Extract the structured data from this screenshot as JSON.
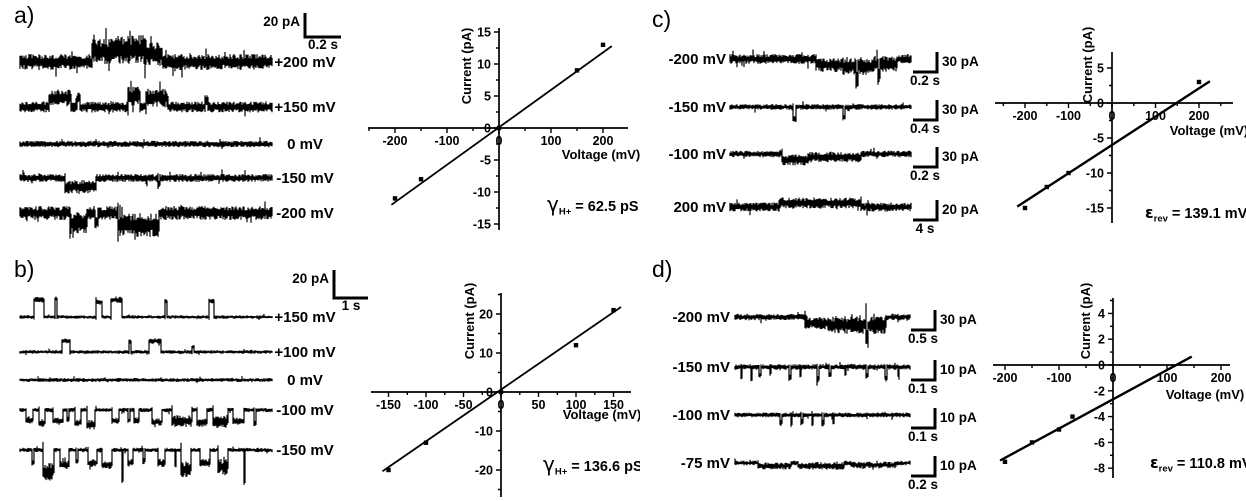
{
  "figure": {
    "background": "#ffffff",
    "ink": "#000000"
  },
  "panels": [
    {
      "label": "a)",
      "scalebars": [
        {
          "current": "20 pA",
          "time": "0.2 s"
        }
      ],
      "traces": [
        {
          "label": "+200 mV",
          "noise": 8,
          "events": [
            {
              "t": "burst",
              "s": 0.285,
              "e": 0.36,
              "a": -10,
              "n": 5
            },
            {
              "t": "burst",
              "s": 0.36,
              "e": 0.5,
              "a": -12,
              "n": 7
            },
            {
              "t": "burst",
              "s": 0.5,
              "e": 0.56,
              "a": -8,
              "n": 4
            }
          ]
        },
        {
          "label": "+150 mV",
          "noise": 5.5,
          "events": [
            {
              "t": "burst",
              "s": 0.115,
              "e": 0.2,
              "a": -9,
              "n": 3
            },
            {
              "t": "spike",
              "s": 0.23,
              "a": -8,
              "w": 0.01
            },
            {
              "t": "burst",
              "s": 0.425,
              "e": 0.475,
              "a": -11,
              "n": 4
            },
            {
              "t": "burst",
              "s": 0.5,
              "e": 0.585,
              "a": -9,
              "n": 4
            },
            {
              "t": "spike",
              "s": 0.74,
              "a": -7,
              "w": 0.012
            }
          ]
        },
        {
          "label": "0 mV",
          "noise": 3.2,
          "events": []
        },
        {
          "label": "-150 mV",
          "noise": 4,
          "events": [
            {
              "t": "burst",
              "s": 0.175,
              "e": 0.3,
              "a": 9,
              "n": 3
            },
            {
              "t": "spike",
              "s": 0.55,
              "a": 6,
              "w": 0.01
            }
          ]
        },
        {
          "label": "-200 mV",
          "noise": 7,
          "events": [
            {
              "t": "burst",
              "s": 0.195,
              "e": 0.265,
              "a": 10,
              "n": 4
            },
            {
              "t": "spike",
              "s": 0.3,
              "a": 8,
              "w": 0.012
            },
            {
              "t": "burst",
              "s": 0.385,
              "e": 0.55,
              "a": 12,
              "n": 5
            }
          ]
        }
      ],
      "annotation": {
        "sym": "γ",
        "sub": "H+",
        "text": "= 62.5 pS"
      }
    },
    {
      "label": "b)",
      "scalebars": [
        {
          "current": "20 pA",
          "time": "1 s"
        }
      ],
      "traces": [
        {
          "label": "+150 mV",
          "noise": 1.8,
          "events": [
            {
              "t": "step",
              "s": 0.055,
              "e": 0.095,
              "a": -17,
              "n": 1.2
            },
            {
              "t": "spike",
              "s": 0.14,
              "a": -18,
              "w": 0.006
            },
            {
              "t": "step",
              "s": 0.3,
              "e": 0.322,
              "a": -15,
              "n": 1
            },
            {
              "t": "step",
              "s": 0.358,
              "e": 0.402,
              "a": -17,
              "n": 1.2
            },
            {
              "t": "spike",
              "s": 0.578,
              "a": -16,
              "w": 0.006
            },
            {
              "t": "step",
              "s": 0.748,
              "e": 0.768,
              "a": -16,
              "n": 1
            }
          ]
        },
        {
          "label": "+100 mV",
          "noise": 1.8,
          "events": [
            {
              "t": "step",
              "s": 0.165,
              "e": 0.198,
              "a": -11,
              "n": 1
            },
            {
              "t": "spike",
              "s": 0.435,
              "a": -10,
              "w": 0.006
            },
            {
              "t": "step",
              "s": 0.508,
              "e": 0.558,
              "a": -11,
              "n": 1
            },
            {
              "t": "spike",
              "s": 0.685,
              "a": -5,
              "w": 0.006
            }
          ]
        },
        {
          "label": "0 mV",
          "noise": 2,
          "events": []
        },
        {
          "label": "-100 mV",
          "noise": 2.2,
          "events": [
            {
              "t": "step",
              "s": 0.02,
              "e": 0.05,
              "a": 10,
              "n": 1.5
            },
            {
              "t": "step",
              "s": 0.072,
              "e": 0.098,
              "a": 13,
              "n": 1.5
            },
            {
              "t": "step",
              "s": 0.128,
              "e": 0.168,
              "a": 11,
              "n": 1.5
            },
            {
              "t": "spike",
              "s": 0.19,
              "a": 9,
              "w": 0.007
            },
            {
              "t": "step",
              "s": 0.215,
              "e": 0.242,
              "a": 13,
              "n": 1.5
            },
            {
              "t": "burst",
              "s": 0.262,
              "e": 0.295,
              "a": 15,
              "n": 3
            },
            {
              "t": "step",
              "s": 0.362,
              "e": 0.392,
              "a": 11,
              "n": 1.5
            },
            {
              "t": "spike",
              "s": 0.432,
              "a": 10,
              "w": 0.007
            },
            {
              "t": "step",
              "s": 0.452,
              "e": 0.472,
              "a": 11,
              "n": 1.5
            },
            {
              "t": "step",
              "s": 0.522,
              "e": 0.562,
              "a": 12,
              "n": 1.5
            },
            {
              "t": "burst",
              "s": 0.602,
              "e": 0.682,
              "a": 11,
              "n": 4
            },
            {
              "t": "step",
              "s": 0.702,
              "e": 0.742,
              "a": 13,
              "n": 2
            },
            {
              "t": "burst",
              "s": 0.762,
              "e": 0.825,
              "a": 12,
              "n": 4
            },
            {
              "t": "step",
              "s": 0.845,
              "e": 0.885,
              "a": 11,
              "n": 1.5
            },
            {
              "t": "spike",
              "s": 0.93,
              "a": 14,
              "w": 0.008
            }
          ]
        },
        {
          "label": "-150 mV",
          "noise": 2.2,
          "events": [
            {
              "t": "spike",
              "s": 0.05,
              "a": 13,
              "w": 0.007
            },
            {
              "t": "burst",
              "s": 0.088,
              "e": 0.132,
              "a": 22,
              "n": 7
            },
            {
              "t": "step",
              "s": 0.158,
              "e": 0.192,
              "a": 15,
              "n": 2
            },
            {
              "t": "spike",
              "s": 0.225,
              "a": 11,
              "w": 0.007
            },
            {
              "t": "step",
              "s": 0.268,
              "e": 0.302,
              "a": 13,
              "n": 2
            },
            {
              "t": "step",
              "s": 0.322,
              "e": 0.362,
              "a": 15,
              "n": 2
            },
            {
              "t": "spike",
              "s": 0.405,
              "a": 30,
              "w": 0.006
            },
            {
              "t": "step",
              "s": 0.425,
              "e": 0.445,
              "a": 13,
              "n": 1.5
            },
            {
              "t": "spike",
              "s": 0.49,
              "a": 11,
              "w": 0.006
            },
            {
              "t": "step",
              "s": 0.545,
              "e": 0.575,
              "a": 13,
              "n": 2
            },
            {
              "t": "spike",
              "s": 0.615,
              "a": 15,
              "w": 0.007
            },
            {
              "t": "burst",
              "s": 0.635,
              "e": 0.675,
              "a": 19,
              "n": 6
            },
            {
              "t": "step",
              "s": 0.712,
              "e": 0.752,
              "a": 13,
              "n": 2
            },
            {
              "t": "burst",
              "s": 0.785,
              "e": 0.825,
              "a": 17,
              "n": 6
            },
            {
              "t": "spike",
              "s": 0.888,
              "a": 32,
              "w": 0.006
            }
          ]
        }
      ],
      "annotation": {
        "sym": "γ",
        "sub": "H+",
        "text": "= 136.6 pS"
      }
    },
    {
      "label": "c)",
      "scalebars": [
        {
          "current": "30 pA",
          "time": "0.2 s"
        },
        {
          "current": "30 pA",
          "time": "0.4 s"
        },
        {
          "current": "30 pA",
          "time": "0.2 s"
        },
        {
          "current": "20 pA",
          "time": "4 s"
        }
      ],
      "traces": [
        {
          "label": "-200 mV",
          "noise": 5,
          "events": [
            {
              "t": "burst",
              "s": 0.47,
              "e": 0.62,
              "a": 6,
              "n": 2
            },
            {
              "t": "burst",
              "s": 0.62,
              "e": 0.78,
              "a": 7,
              "n": 4
            },
            {
              "t": "spike",
              "s": 0.7,
              "a": 14,
              "w": 0.012
            },
            {
              "t": "burst",
              "s": 0.78,
              "e": 0.92,
              "a": 5,
              "n": 3
            },
            {
              "t": "spike",
              "s": 0.82,
              "a": 12,
              "w": 0.01
            }
          ]
        },
        {
          "label": "-150 mV",
          "noise": 2.8,
          "events": [
            {
              "t": "spike",
              "s": 0.355,
              "a": 12,
              "w": 0.018
            },
            {
              "t": "spike",
              "s": 0.625,
              "a": 10,
              "w": 0.012
            }
          ]
        },
        {
          "label": "-100 mV",
          "noise": 3.4,
          "events": [
            {
              "t": "burst",
              "s": 0.285,
              "e": 0.43,
              "a": 6,
              "n": 2
            },
            {
              "t": "burst",
              "s": 0.43,
              "e": 0.72,
              "a": 3,
              "n": 2
            }
          ]
        },
        {
          "label": "200 mV",
          "noise": 4.5,
          "events": [
            {
              "t": "burst",
              "s": 0.27,
              "e": 0.72,
              "a": -4,
              "n": 1
            }
          ]
        }
      ],
      "annotation": {
        "sym": "ε",
        "sub": "rev",
        "text": "= 139.1 mV"
      }
    },
    {
      "label": "d)",
      "scalebars": [
        {
          "current": "30 pA",
          "time": "0.5 s"
        },
        {
          "current": "10 pA",
          "time": "0.1 s"
        },
        {
          "current": "10 pA",
          "time": "0.1 s"
        },
        {
          "current": "10 pA",
          "time": "0.2 s"
        }
      ],
      "traces": [
        {
          "label": "-200 mV",
          "noise": 3.2,
          "events": [
            {
              "t": "burst",
              "s": 0.4,
              "e": 0.53,
              "a": 6,
              "n": 3
            },
            {
              "t": "burst",
              "s": 0.53,
              "e": 0.86,
              "a": 8,
              "n": 6
            },
            {
              "t": "spike",
              "s": 0.75,
              "a": 14,
              "w": 0.01
            }
          ]
        },
        {
          "label": "-150 mV",
          "noise": 2.8,
          "events": [
            {
              "t": "spike",
              "s": 0.035,
              "a": 9,
              "w": 0.008
            },
            {
              "t": "spike",
              "s": 0.09,
              "a": 12,
              "w": 0.008
            },
            {
              "t": "spike",
              "s": 0.14,
              "a": 8,
              "w": 0.008
            },
            {
              "t": "spike",
              "s": 0.2,
              "a": 6,
              "w": 0.008
            },
            {
              "t": "spike",
              "s": 0.31,
              "a": 11,
              "w": 0.009
            },
            {
              "t": "spike",
              "s": 0.37,
              "a": 7,
              "w": 0.008
            },
            {
              "t": "spike",
              "s": 0.47,
              "a": 12,
              "w": 0.009
            },
            {
              "t": "spike",
              "s": 0.54,
              "a": 8,
              "w": 0.008
            },
            {
              "t": "spike",
              "s": 0.63,
              "a": 7,
              "w": 0.008
            },
            {
              "t": "spike",
              "s": 0.75,
              "a": 9,
              "w": 0.009
            },
            {
              "t": "spike",
              "s": 0.86,
              "a": 11,
              "w": 0.009
            },
            {
              "t": "spike",
              "s": 0.93,
              "a": 8,
              "w": 0.008
            }
          ]
        },
        {
          "label": "-100 mV",
          "noise": 2.4,
          "events": [
            {
              "t": "spike",
              "s": 0.26,
              "a": 7,
              "w": 0.009
            },
            {
              "t": "spike",
              "s": 0.32,
              "a": 9,
              "w": 0.009
            },
            {
              "t": "spike",
              "s": 0.38,
              "a": 7,
              "w": 0.008
            },
            {
              "t": "spike",
              "s": 0.44,
              "a": 9,
              "w": 0.009
            },
            {
              "t": "spike",
              "s": 0.5,
              "a": 8,
              "w": 0.008
            },
            {
              "t": "spike",
              "s": 0.56,
              "a": 7,
              "w": 0.008
            }
          ]
        },
        {
          "label": "-75 mV",
          "noise": 2.4,
          "events": [
            {
              "t": "burst",
              "s": 0.13,
              "e": 0.32,
              "a": 3,
              "n": 1
            },
            {
              "t": "burst",
              "s": 0.36,
              "e": 0.62,
              "a": 3,
              "n": 1.5
            },
            {
              "t": "burst",
              "s": 0.66,
              "e": 0.92,
              "a": 2,
              "n": 1
            }
          ]
        }
      ],
      "annotation": {
        "sym": "ε",
        "sub": "rev",
        "text": "= 110.8 mV"
      }
    }
  ],
  "chart_data": [
    {
      "panel": "a",
      "type": "scatter",
      "xlabel": "Voltage (mV)",
      "ylabel": "Current (pA)",
      "x": [
        -200,
        -150,
        0,
        150,
        200
      ],
      "y": [
        -11,
        -8,
        0,
        9,
        13
      ],
      "fit_line": {
        "x": [
          -207,
          217
        ],
        "y": [
          -12.0,
          12.8
        ]
      },
      "xticks": [
        -200,
        -100,
        0,
        100,
        200
      ],
      "yticks": [
        -15,
        -10,
        -5,
        0,
        5,
        10,
        15
      ],
      "xminor": 50,
      "yminor": 2.5,
      "xlim": [
        -252,
        248
      ],
      "ylim": [
        -16,
        16
      ],
      "annotation": "γH+ = 62.5 pS"
    },
    {
      "panel": "b",
      "type": "scatter",
      "xlabel": "Voltage (mV)",
      "ylabel": "Current (pA)",
      "x": [
        -150,
        -100,
        0,
        100,
        150
      ],
      "y": [
        -20,
        -13,
        0,
        12,
        21
      ],
      "fit_line": {
        "x": [
          -158,
          160
        ],
        "y": [
          -20.3,
          21.8
        ]
      },
      "xticks": [
        -150,
        -100,
        -50,
        0,
        50,
        100,
        150
      ],
      "yticks": [
        -20,
        -10,
        0,
        10,
        20
      ],
      "xminor": 25,
      "yminor": 5,
      "xlim": [
        -173,
        173
      ],
      "ylim": [
        -26,
        26
      ],
      "annotation": "γH+ = 136.6 pS"
    },
    {
      "panel": "c",
      "type": "scatter",
      "xlabel": "Voltage (mV)",
      "ylabel": "Current (pA)",
      "x": [
        -200,
        -150,
        -100,
        200
      ],
      "y": [
        -15,
        -12,
        -10,
        3
      ],
      "fit_line": {
        "x": [
          -218,
          225
        ],
        "y": [
          -14.8,
          3.1
        ]
      },
      "xticks": [
        -200,
        -100,
        0,
        100,
        200
      ],
      "yticks": [
        -15,
        -10,
        -5,
        0,
        5
      ],
      "xminor": 50,
      "yminor": 2.5,
      "xlim": [
        -266,
        275
      ],
      "ylim": [
        -17,
        7.3
      ],
      "annotation": "εrev = 139.1 mV"
    },
    {
      "panel": "d",
      "type": "scatter",
      "xlabel": "Voltage (mV)",
      "ylabel": "Current (pA)",
      "x": [
        -200,
        -150,
        -100,
        -75
      ],
      "y": [
        -7.5,
        -6,
        -5,
        -4
      ],
      "fit_line": {
        "x": [
          -209,
          146
        ],
        "y": [
          -7.4,
          0.65
        ]
      },
      "xticks": [
        -200,
        -100,
        0,
        100,
        200
      ],
      "yticks": [
        -8,
        -6,
        -4,
        -2,
        0,
        2,
        4
      ],
      "xminor": 50,
      "yminor": 1,
      "xlim": [
        -222,
        217
      ],
      "ylim": [
        -8.8,
        5.2
      ],
      "annotation": "εrev = 110.8 mV"
    }
  ]
}
